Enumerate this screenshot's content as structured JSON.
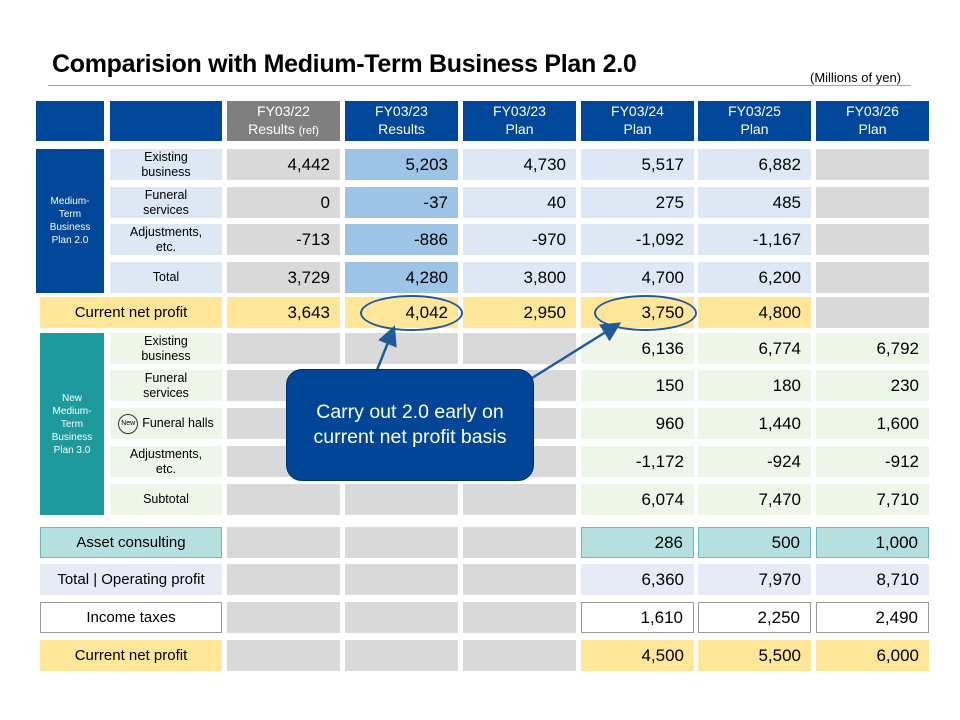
{
  "title": "Comparision with Medium-Term Business Plan 2.0",
  "unit": "(Millions of yen)",
  "columns": [
    {
      "line1": "FY03/22",
      "line2": "Results",
      "note": "(ref)"
    },
    {
      "line1": "FY03/23",
      "line2": "Results",
      "note": ""
    },
    {
      "line1": "FY03/23",
      "line2": "Plan",
      "note": ""
    },
    {
      "line1": "FY03/24",
      "line2": "Plan",
      "note": ""
    },
    {
      "line1": "FY03/25",
      "line2": "Plan",
      "note": ""
    },
    {
      "line1": "FY03/26",
      "line2": "Plan",
      "note": ""
    }
  ],
  "group_plan20": "Medium-Term Business Plan 2.0",
  "group_plan30": "New Medium-Term Business Plan 3.0",
  "new_badge": "New",
  "plan20_rows": [
    {
      "label": "Existing business",
      "values": [
        "4,442",
        "5,203",
        "4,730",
        "5,517",
        "6,882",
        ""
      ]
    },
    {
      "label": "Funeral services",
      "values": [
        "0",
        "-37",
        "40",
        "275",
        "485",
        ""
      ]
    },
    {
      "label": "Adjustments, etc.",
      "values": [
        "-713",
        "-886",
        "-970",
        "-1,092",
        "-1,167",
        ""
      ]
    },
    {
      "label": "Total",
      "values": [
        "3,729",
        "4,280",
        "3,800",
        "4,700",
        "6,200",
        ""
      ]
    }
  ],
  "plan20_net_profit": {
    "label": "Current net profit",
    "values": [
      "3,643",
      "4,042",
      "2,950",
      "3,750",
      "4,800",
      ""
    ]
  },
  "plan30_rows": [
    {
      "label": "Existing business",
      "values": [
        "",
        "",
        "",
        "6,136",
        "6,774",
        "6,792"
      ]
    },
    {
      "label": "Funeral services",
      "values": [
        "",
        "",
        "",
        "150",
        "180",
        "230"
      ]
    },
    {
      "label": "Funeral halls",
      "is_new": true,
      "values": [
        "",
        "",
        "",
        "960",
        "1,440",
        "1,600"
      ]
    },
    {
      "label": "Adjustments, etc.",
      "values": [
        "",
        "",
        "",
        "-1,172",
        "-924",
        "-912"
      ]
    },
    {
      "label": "Subtotal",
      "values": [
        "",
        "",
        "",
        "6,074",
        "7,470",
        "7,710"
      ]
    }
  ],
  "bottom_rows": [
    {
      "label": "Asset consulting",
      "values": [
        "",
        "",
        "",
        "286",
        "500",
        "1,000"
      ]
    },
    {
      "label": "Total | Operating profit",
      "values": [
        "",
        "",
        "",
        "6,360",
        "7,970",
        "8,710"
      ]
    },
    {
      "label": "Income taxes",
      "values": [
        "",
        "",
        "",
        "1,610",
        "2,250",
        "2,490"
      ]
    },
    {
      "label": "Current net profit",
      "values": [
        "",
        "",
        "",
        "4,500",
        "5,500",
        "6,000"
      ]
    }
  ],
  "callout": "Carry out 2.0 early on current net profit basis",
  "colors": {
    "navy": "#00479a",
    "gray_header": "#7f7f7f",
    "teal": "#1d9a9c",
    "yellow": "#ffe699",
    "results_blue": "#9dc3e6",
    "light_blue": "#dde8f4",
    "gray_cell": "#d9d9d9",
    "light_green": "#eef6ea",
    "asset_teal": "#b6dfdf",
    "total_lavender": "#e6ebf6"
  }
}
